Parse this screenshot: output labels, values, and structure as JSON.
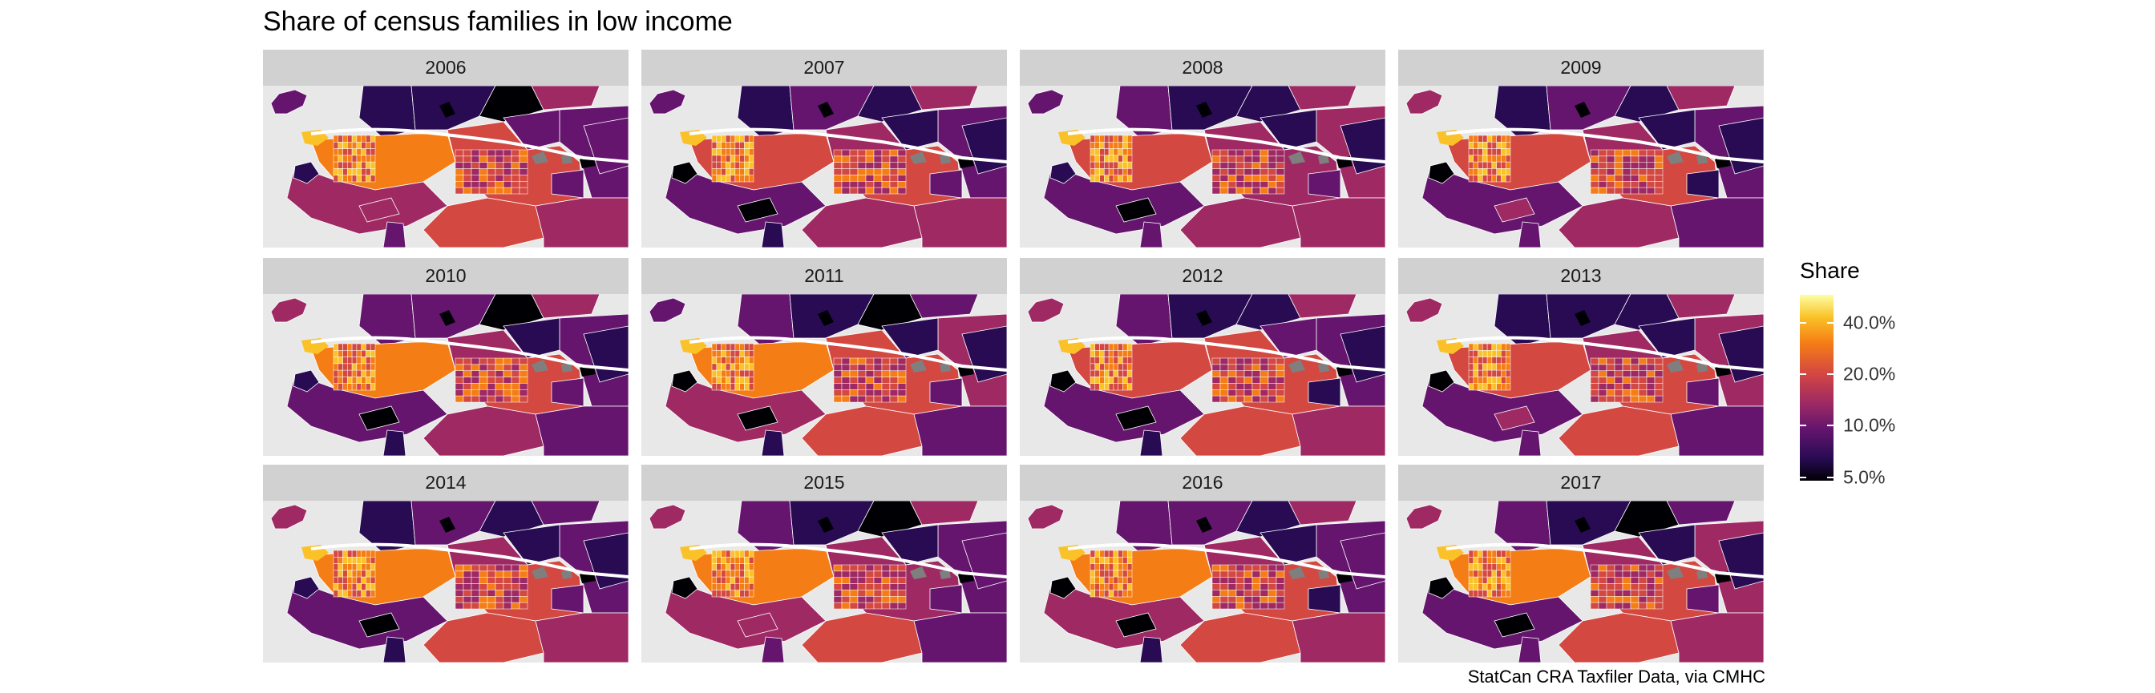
{
  "title": "Share of census families in low income",
  "caption": "StatCan CRA Taxfiler Data, via CMHC",
  "legend": {
    "title": "Share",
    "ticks": [
      {
        "label": "40.0%",
        "value": 0.4
      },
      {
        "label": "20.0%",
        "value": 0.2
      },
      {
        "label": "10.0%",
        "value": 0.1
      },
      {
        "label": "5.0%",
        "value": 0.05
      }
    ],
    "scale": "log"
  },
  "colors": {
    "background": "#e8e8e8",
    "strip": "#d1d1d1",
    "border": "#ffffff",
    "na": "#7f7f7f",
    "palette": [
      "#000004",
      "#280b53",
      "#65156e",
      "#9f2a63",
      "#d44842",
      "#f57d15",
      "#fac228",
      "#fcffa4"
    ]
  },
  "panels": [
    {
      "year": "2006"
    },
    {
      "year": "2007"
    },
    {
      "year": "2008"
    },
    {
      "year": "2009"
    },
    {
      "year": "2010"
    },
    {
      "year": "2011"
    },
    {
      "year": "2012"
    },
    {
      "year": "2013"
    },
    {
      "year": "2014"
    },
    {
      "year": "2015"
    },
    {
      "year": "2016"
    },
    {
      "year": "2017"
    }
  ]
}
